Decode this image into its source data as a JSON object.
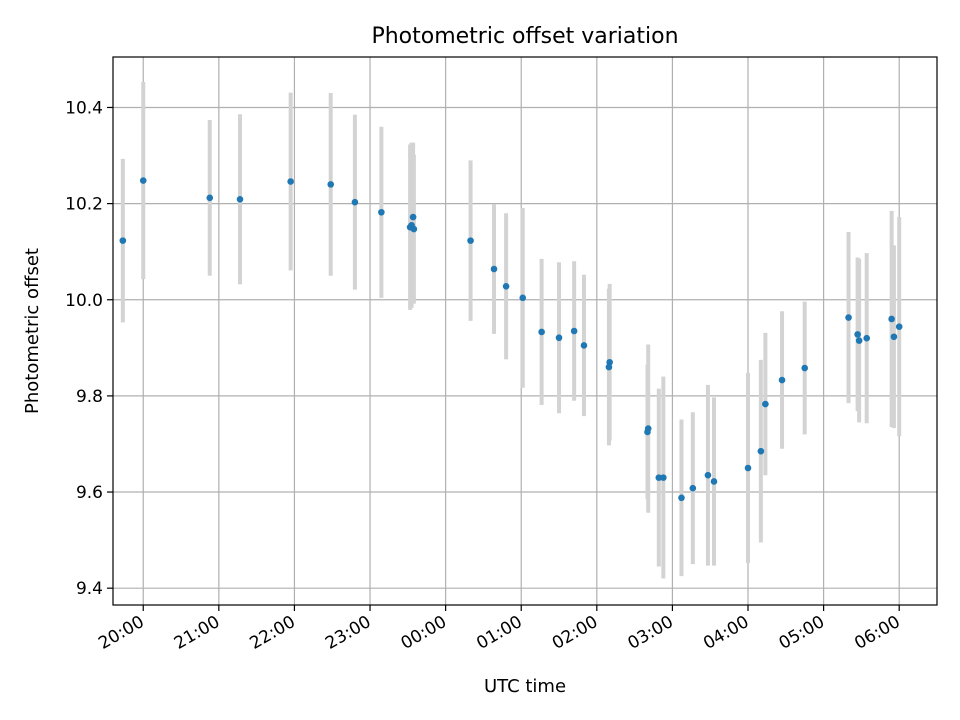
{
  "chart_data": {
    "type": "scatter",
    "title": "Photometric offset variation",
    "xlabel": "UTC time",
    "ylabel": "Photometric offset",
    "x_unit": "UTC time (hours past midnight; times before 00:00 are the previous evening)",
    "xlim": [
      -4.4,
      6.5
    ],
    "ylim": [
      9.365,
      10.505
    ],
    "grid": true,
    "xticks": [
      {
        "value": -4,
        "label": "20:00"
      },
      {
        "value": -3,
        "label": "21:00"
      },
      {
        "value": -2,
        "label": "22:00"
      },
      {
        "value": -1,
        "label": "23:00"
      },
      {
        "value": 0,
        "label": "00:00"
      },
      {
        "value": 1,
        "label": "01:00"
      },
      {
        "value": 2,
        "label": "02:00"
      },
      {
        "value": 3,
        "label": "03:00"
      },
      {
        "value": 4,
        "label": "04:00"
      },
      {
        "value": 5,
        "label": "05:00"
      },
      {
        "value": 6,
        "label": "06:00"
      }
    ],
    "yticks": [
      {
        "value": 9.4,
        "label": "9.4"
      },
      {
        "value": 9.6,
        "label": "9.6"
      },
      {
        "value": 9.8,
        "label": "9.8"
      },
      {
        "value": 10.0,
        "label": "10.0"
      },
      {
        "value": 10.2,
        "label": "10.2"
      },
      {
        "value": 10.4,
        "label": "10.4"
      }
    ],
    "colors": {
      "points": "#1f77b4",
      "errorbars": "#d3d3d3",
      "grid": "#b0b0b0"
    },
    "points": [
      {
        "x": -4.27,
        "y": 10.123,
        "err": 0.17
      },
      {
        "x": -4.0,
        "y": 10.248,
        "err": 0.205
      },
      {
        "x": -3.12,
        "y": 10.212,
        "err": 0.162
      },
      {
        "x": -2.72,
        "y": 10.209,
        "err": 0.177
      },
      {
        "x": -2.05,
        "y": 10.246,
        "err": 0.185
      },
      {
        "x": -1.52,
        "y": 10.24,
        "err": 0.19
      },
      {
        "x": -1.2,
        "y": 10.203,
        "err": 0.182
      },
      {
        "x": -0.85,
        "y": 10.182,
        "err": 0.178
      },
      {
        "x": -0.47,
        "y": 10.151,
        "err": 0.172
      },
      {
        "x": -0.45,
        "y": 10.155,
        "err": 0.172
      },
      {
        "x": -0.43,
        "y": 10.172,
        "err": 0.155
      },
      {
        "x": -0.42,
        "y": 10.147,
        "err": 0.155
      },
      {
        "x": 0.33,
        "y": 10.123,
        "err": 0.167
      },
      {
        "x": 0.64,
        "y": 10.064,
        "err": 0.135
      },
      {
        "x": 0.8,
        "y": 10.028,
        "err": 0.152
      },
      {
        "x": 1.02,
        "y": 10.004,
        "err": 0.187
      },
      {
        "x": 1.27,
        "y": 9.933,
        "err": 0.152
      },
      {
        "x": 1.5,
        "y": 9.921,
        "err": 0.157
      },
      {
        "x": 1.7,
        "y": 9.935,
        "err": 0.145
      },
      {
        "x": 1.83,
        "y": 9.905,
        "err": 0.147
      },
      {
        "x": 2.17,
        "y": 9.87,
        "err": 0.163
      },
      {
        "x": 2.16,
        "y": 9.86,
        "err": 0.163
      },
      {
        "x": 2.68,
        "y": 9.732,
        "err": 0.175
      },
      {
        "x": 2.67,
        "y": 9.725,
        "err": 0.14
      },
      {
        "x": 2.82,
        "y": 9.63,
        "err": 0.185
      },
      {
        "x": 2.88,
        "y": 9.63,
        "err": 0.21
      },
      {
        "x": 3.12,
        "y": 9.588,
        "err": 0.163
      },
      {
        "x": 3.27,
        "y": 9.608,
        "err": 0.158
      },
      {
        "x": 3.47,
        "y": 9.635,
        "err": 0.188
      },
      {
        "x": 3.55,
        "y": 9.622,
        "err": 0.175
      },
      {
        "x": 4.0,
        "y": 9.65,
        "err": 0.198
      },
      {
        "x": 4.17,
        "y": 9.685,
        "err": 0.19
      },
      {
        "x": 4.23,
        "y": 9.783,
        "err": 0.148
      },
      {
        "x": 4.45,
        "y": 9.833,
        "err": 0.143
      },
      {
        "x": 4.75,
        "y": 9.858,
        "err": 0.138
      },
      {
        "x": 5.33,
        "y": 9.963,
        "err": 0.178
      },
      {
        "x": 5.45,
        "y": 9.928,
        "err": 0.16
      },
      {
        "x": 5.47,
        "y": 9.915,
        "err": 0.17
      },
      {
        "x": 5.57,
        "y": 9.92,
        "err": 0.177
      },
      {
        "x": 5.9,
        "y": 9.96,
        "err": 0.225
      },
      {
        "x": 5.93,
        "y": 9.923,
        "err": 0.19
      },
      {
        "x": 6.0,
        "y": 9.944,
        "err": 0.228
      }
    ]
  }
}
